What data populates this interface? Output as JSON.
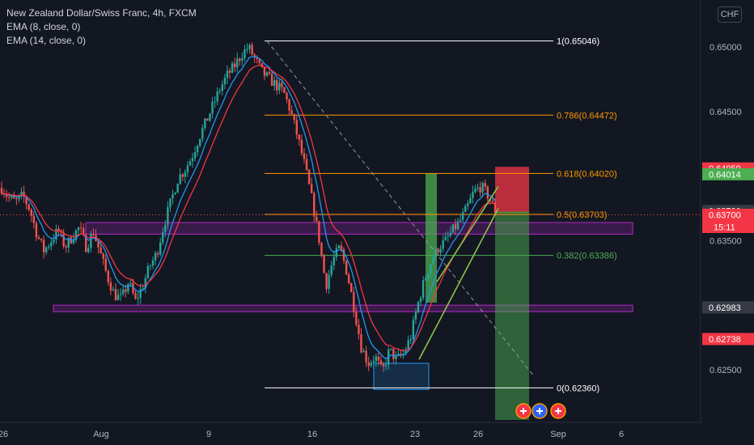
{
  "title": "New Zealand Dollar/Swiss Franc, 4h, FXCM",
  "indicators": [
    "EMA (8, close, 0)",
    "EMA (14, close, 0)"
  ],
  "currency_button": "CHF",
  "colors": {
    "background": "#131722",
    "up": "#26a69a",
    "down": "#ef5350",
    "ema_fast": "#2196f3",
    "ema_slow": "#f23645",
    "fib_orange": "#ff9800",
    "fib_green": "#4caf50",
    "fib_white": "#ffffff",
    "zone": "#9c27b0"
  },
  "chart_data": {
    "type": "candlestick",
    "ylim": [
      0.6221,
      0.6524
    ],
    "y_ticks": [
      "0.65000",
      "0.64500",
      "0.63500",
      "0.62500"
    ],
    "x_ticks": [
      "26",
      "Aug",
      "9",
      "16",
      "23",
      "26",
      "Sep",
      "6"
    ],
    "grid": false,
    "fib_levels": [
      {
        "ratio": "1",
        "price": 0.65046,
        "label": "1(0.65046)"
      },
      {
        "ratio": "0.786",
        "price": 0.64472,
        "label": "0.786(0.64472)"
      },
      {
        "ratio": "0.618",
        "price": 0.6402,
        "label": "0.618(0.64020)"
      },
      {
        "ratio": "0.5",
        "price": 0.63703,
        "label": "0.5(0.63703)"
      },
      {
        "ratio": "0.382",
        "price": 0.63386,
        "label": "0.382(0.63386)"
      },
      {
        "ratio": "0",
        "price": 0.6236,
        "label": "0(0.62360)"
      }
    ],
    "zones": [
      {
        "name": "upper-resistance-zone",
        "top": 0.6364,
        "bottom": 0.6355
      },
      {
        "name": "lower-support-zone",
        "top": 0.63,
        "bottom": 0.6296
      }
    ],
    "price_labels": [
      {
        "value": "0.64059",
        "role": "stop-loss",
        "price": 0.64059
      },
      {
        "value": "0.64014",
        "role": "entry",
        "price": 0.64014
      },
      {
        "value": "0.63730",
        "role": "level",
        "price": 0.6373
      },
      {
        "value": "0.63700",
        "role": "last-price",
        "price": 0.637,
        "countdown": "15:11"
      },
      {
        "value": "0.62983",
        "role": "level",
        "price": 0.62983
      },
      {
        "value": "0.62738",
        "role": "level",
        "price": 0.62738
      }
    ],
    "position": {
      "type": "short",
      "entry": 0.6372,
      "stop": 0.64059,
      "target": 0.6236
    },
    "series": [
      {
        "name": "EMA (8, close, 0)",
        "type": "line"
      },
      {
        "name": "EMA (14, close, 0)",
        "type": "line"
      }
    ],
    "ohlc_keypoints": [
      0.6391,
      0.6383,
      0.638,
      0.6385,
      0.6374,
      0.6355,
      0.6342,
      0.635,
      0.6358,
      0.6345,
      0.6353,
      0.636,
      0.6345,
      0.6357,
      0.634,
      0.6322,
      0.6308,
      0.6305,
      0.6318,
      0.6303,
      0.6315,
      0.633,
      0.634,
      0.6362,
      0.638,
      0.6398,
      0.6405,
      0.6415,
      0.643,
      0.6442,
      0.6455,
      0.6468,
      0.6478,
      0.6485,
      0.6494,
      0.65,
      0.649,
      0.648,
      0.6475,
      0.647,
      0.6465,
      0.645,
      0.643,
      0.6408,
      0.6382,
      0.6352,
      0.6315,
      0.6335,
      0.6345,
      0.6325,
      0.6298,
      0.6268,
      0.6255,
      0.626,
      0.6248,
      0.6265,
      0.6258,
      0.6262,
      0.6275,
      0.63,
      0.632,
      0.6335,
      0.6345,
      0.635,
      0.6358,
      0.6365,
      0.6375,
      0.6388,
      0.6392,
      0.6385,
      0.6373
    ]
  }
}
